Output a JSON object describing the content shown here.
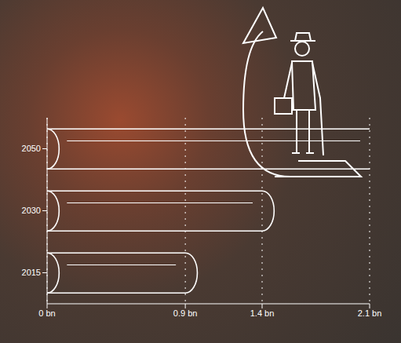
{
  "chart_data": {
    "type": "bar",
    "orientation": "horizontal",
    "categories": [
      "2015",
      "2030",
      "2050"
    ],
    "values": [
      0.9,
      1.4,
      2.1
    ],
    "color": "#ffffff",
    "xlim": [
      0,
      2.1
    ],
    "xticks": [
      {
        "value": 0,
        "label": "0 bn"
      },
      {
        "value": 0.9,
        "label": "0.9 bn"
      },
      {
        "value": 1.4,
        "label": "1.4 bn"
      },
      {
        "value": 2.1,
        "label": "2.1 bn"
      }
    ],
    "grid": true
  }
}
